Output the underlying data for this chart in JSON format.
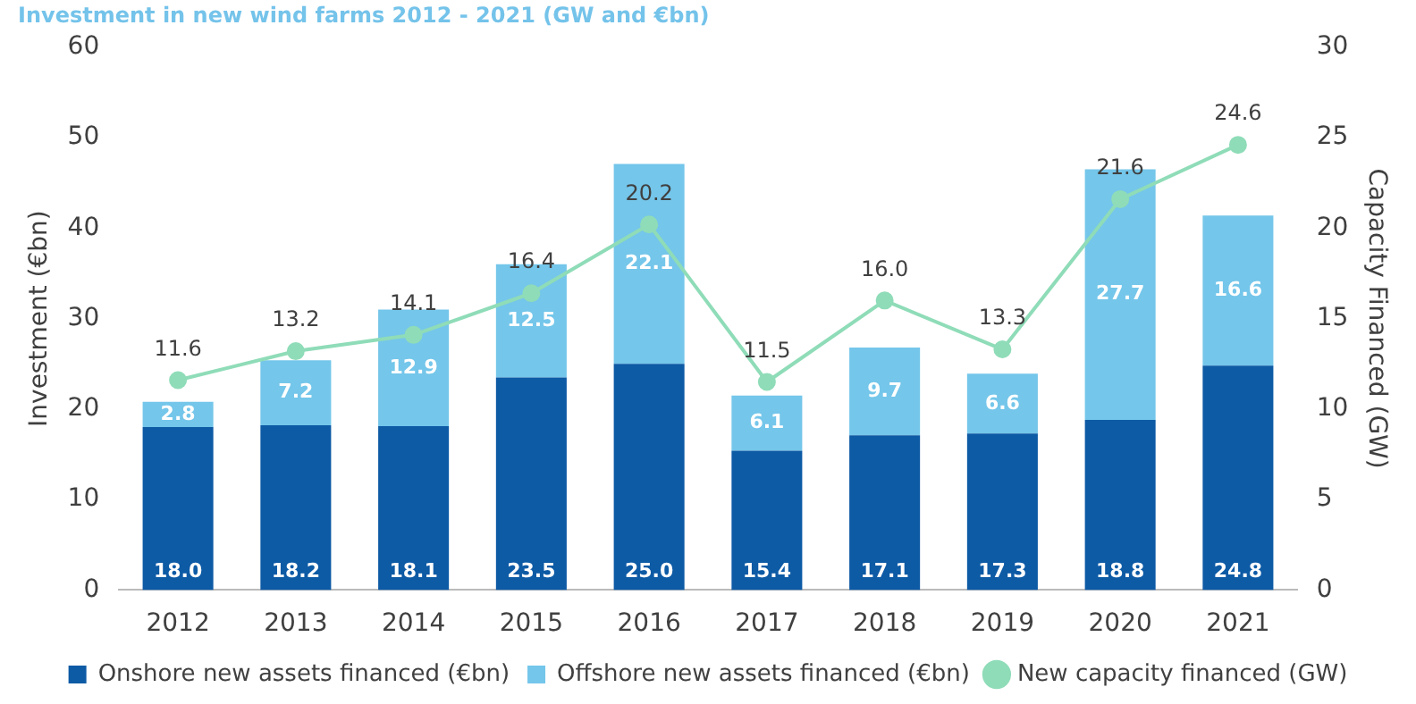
{
  "chart_data": {
    "type": "bar",
    "title": "Investment in new wind farms 2012 - 2021 (GW and €bn)",
    "ylabel": "Investment (€bn)",
    "y2label": "Capacity Financed (GW)",
    "categories": [
      "2012",
      "2013",
      "2014",
      "2015",
      "2016",
      "2017",
      "2018",
      "2019",
      "2020",
      "2021"
    ],
    "stacked": true,
    "legend": "bottom",
    "grid": false,
    "ylim": [
      0,
      60
    ],
    "yticks": [
      0,
      10,
      20,
      30,
      40,
      50,
      60
    ],
    "y2lim": [
      0,
      30
    ],
    "y2ticks": [
      0,
      5,
      10,
      15,
      20,
      25,
      30
    ],
    "series": [
      {
        "name": "Onshore new assets financed (€bn)",
        "color": "#0d5aa5",
        "values": [
          18.0,
          18.2,
          18.1,
          23.5,
          25.0,
          15.4,
          17.1,
          17.3,
          18.8,
          24.8
        ],
        "value_labels": [
          "18.0",
          "18.2",
          "18.1",
          "23.5",
          "25.0",
          "15.4",
          "17.1",
          "17.3",
          "18.8",
          "24.8"
        ]
      },
      {
        "name": "Offshore new assets financed (€bn)",
        "color": "#74c6ea",
        "values": [
          2.8,
          7.2,
          12.9,
          12.5,
          22.1,
          6.1,
          9.7,
          6.6,
          27.7,
          16.6
        ],
        "value_labels": [
          "2.8",
          "7.2",
          "12.9",
          "12.5",
          "22.1",
          "6.1",
          "9.7",
          "6.6",
          "27.7",
          "16.6"
        ]
      },
      {
        "name": "New capacity financed (GW)",
        "type": "line",
        "axis": "y2",
        "marker": "circle",
        "color": "#8fdcb8",
        "values": [
          11.6,
          13.2,
          14.1,
          16.4,
          20.2,
          11.5,
          16.0,
          13.3,
          21.6,
          24.6
        ],
        "value_labels": [
          "11.6",
          "13.2",
          "14.1",
          "16.4",
          "20.2",
          "11.5",
          "16.0",
          "13.3",
          "21.6",
          "24.6"
        ]
      }
    ]
  }
}
